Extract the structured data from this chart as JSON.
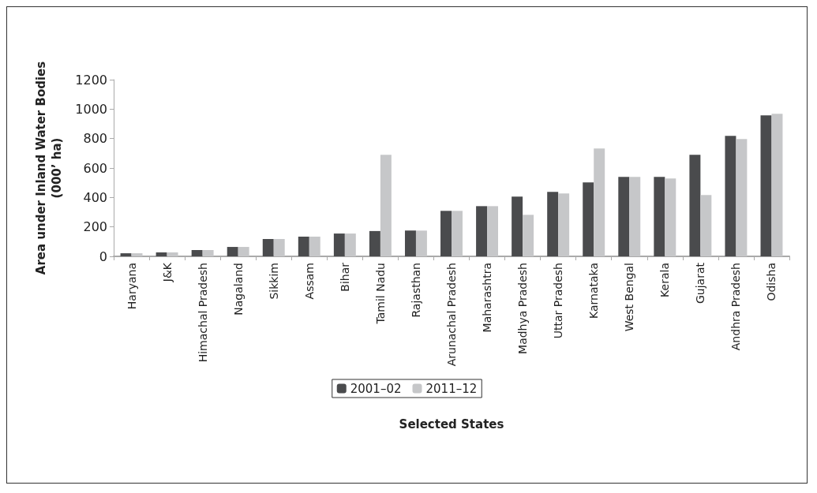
{
  "chart_data": {
    "type": "bar",
    "xlabel": "Selected States",
    "ylabel": "Area under Inland Water Bodies\n(000’ ha)",
    "categories": [
      "Haryana",
      "J&K",
      "Himachal Pradesh",
      "Nagaland",
      "Sikkim",
      "Assam",
      "Bihar",
      "Tamil Nadu",
      "Rajasthan",
      "Arunachal Pradesh",
      "Maharashtra",
      "Madhya Pradesh",
      "Uttar Pradesh",
      "Karnataka",
      "West Bengal",
      "Kerala",
      "Gujarat",
      "Andhra Pradesh",
      "Odisha"
    ],
    "series": [
      {
        "name": "2001–02",
        "color": "#4a4b4d",
        "values": [
          21,
          27,
          43,
          64,
          118,
          134,
          155,
          172,
          175,
          309,
          341,
          406,
          438,
          502,
          540,
          540,
          690,
          818,
          958
        ]
      },
      {
        "name": "2011–12",
        "color": "#c6c7c9",
        "values": [
          21,
          27,
          43,
          64,
          118,
          134,
          155,
          690,
          175,
          309,
          341,
          282,
          427,
          733,
          540,
          529,
          417,
          797,
          968
        ]
      }
    ],
    "ylim": [
      0,
      1200
    ],
    "yticks": [
      0,
      200,
      400,
      600,
      800,
      1000,
      1200
    ],
    "grid": false,
    "legend": "bottom"
  }
}
